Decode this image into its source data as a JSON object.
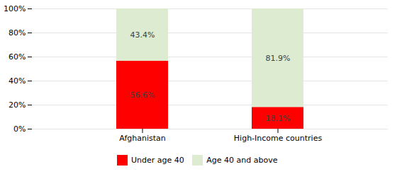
{
  "chart_data": {
    "type": "bar",
    "stacked": true,
    "categories": [
      "Afghanistan",
      "High-Income countries"
    ],
    "series": [
      {
        "name": "Under age 40",
        "color": "#ff0000",
        "values": [
          56.6,
          18.1
        ],
        "value_labels": [
          "56.6%",
          "18.1%"
        ]
      },
      {
        "name": "Age 40 and above",
        "color": "#ddecd0",
        "values": [
          43.4,
          81.9
        ],
        "value_labels": [
          "43.4%",
          "81.9%"
        ]
      }
    ],
    "ylim": [
      0,
      100
    ],
    "yticks": [
      {
        "value": 0,
        "label": "0%"
      },
      {
        "value": 20,
        "label": "20%"
      },
      {
        "value": 40,
        "label": "40%"
      },
      {
        "value": 60,
        "label": "60%"
      },
      {
        "value": 80,
        "label": "80%"
      },
      {
        "value": 100,
        "label": "100%"
      }
    ],
    "grid": true,
    "legend": "bottom",
    "data_labels": true
  }
}
